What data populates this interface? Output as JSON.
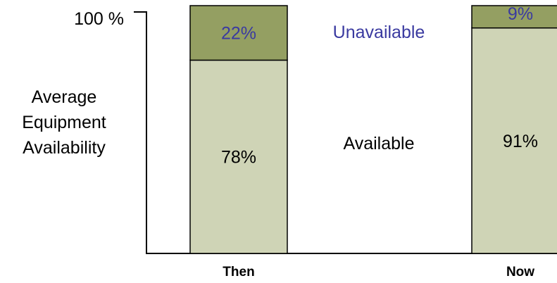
{
  "chart_data": {
    "type": "bar",
    "stacked": true,
    "ylabel": [
      "Average",
      "Equipment",
      "Availability"
    ],
    "ytick_label": "100 %",
    "ylim": [
      0,
      100
    ],
    "categories": [
      "Then",
      "Now"
    ],
    "series": [
      {
        "name": "Available",
        "values": [
          78,
          91
        ],
        "labels": [
          "78%",
          "91%"
        ],
        "color": "#cfd4b6",
        "label_color": "#000000"
      },
      {
        "name": "Unavailable",
        "values": [
          22,
          9
        ],
        "labels": [
          "22%",
          "9%"
        ],
        "color": "#949f62",
        "label_color": "#3a3aa0"
      }
    ],
    "legend_colors": {
      "Available": "#000000",
      "Unavailable": "#3a3aa0"
    },
    "grid": false
  }
}
